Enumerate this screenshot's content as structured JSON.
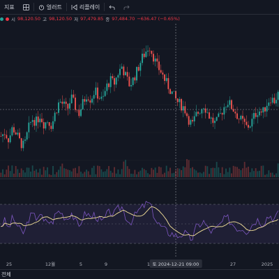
{
  "toolbar": {
    "indicators_label": "지표",
    "alert_label": "얼러트",
    "replay_label": "리플레이"
  },
  "legend": {
    "open_key": "시",
    "open_val": "98,120.50",
    "high_key": "고",
    "high_val": "98,120.50",
    "low_key": "저",
    "low_val": "97,479.85",
    "close_key": "종",
    "close_val": "97,484.70",
    "change": "−636.47 (−0.65%)"
  },
  "crosshair": {
    "date_label": "토 2024-12-21",
    "time_label": "09:00"
  },
  "bottom": {
    "range_label": "전체"
  },
  "colors": {
    "background": "#131722",
    "up": "#26a69a",
    "down": "#ef5350",
    "rsi_line": "#7e57c2",
    "rsi_ma": "#f5e29a",
    "grid": "#1e222d"
  },
  "chart_data": {
    "type": "candlestick",
    "x_tick_labels": [
      "25",
      "12월",
      "5",
      "9",
      "16",
      "토 2024-12-21 09:00",
      "27",
      "2025"
    ],
    "close_series_description": "hourly price path, rising to a peak mid-December then falling",
    "price_path": [
      40,
      42,
      38,
      45,
      41,
      36,
      34,
      44,
      50,
      48,
      52,
      47,
      49,
      46,
      54,
      60,
      58,
      55,
      62,
      57,
      53,
      59,
      64,
      61,
      66,
      63,
      60,
      68,
      72,
      70,
      76,
      80,
      74,
      69,
      73,
      78,
      84,
      88,
      92,
      86,
      80,
      77,
      72,
      68,
      64,
      60,
      58,
      56,
      50,
      46,
      52,
      55,
      58,
      53,
      49,
      47,
      51,
      56,
      60,
      57,
      54,
      50,
      48,
      45,
      47,
      52,
      55,
      53,
      58,
      62,
      60,
      64
    ],
    "rsi_path": [
      48,
      55,
      42,
      60,
      50,
      38,
      35,
      58,
      65,
      60,
      68,
      52,
      56,
      50,
      66,
      72,
      64,
      58,
      70,
      55,
      45,
      62,
      68,
      60,
      66,
      58,
      52,
      64,
      70,
      66,
      74,
      78,
      62,
      52,
      60,
      70,
      76,
      82,
      84,
      68,
      52,
      46,
      40,
      36,
      34,
      30,
      32,
      36,
      28,
      26,
      44,
      50,
      54,
      42,
      38,
      40,
      48,
      56,
      60,
      52,
      46,
      42,
      44,
      38,
      46,
      54,
      58,
      50,
      60,
      64,
      58,
      66
    ]
  }
}
